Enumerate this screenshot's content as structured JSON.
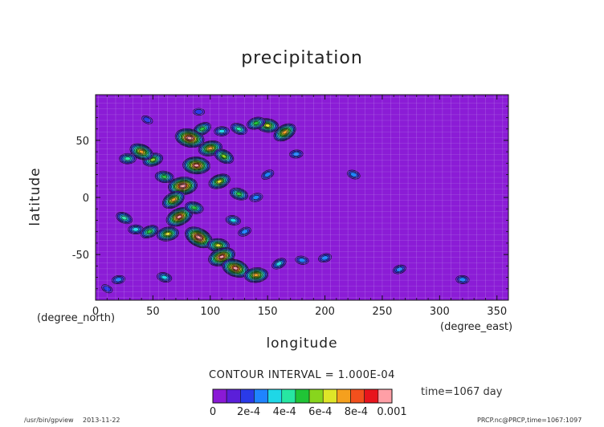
{
  "chart_data": {
    "type": "heatmap",
    "title": "precipitation",
    "xlabel": "longitude",
    "xlabel_unit": "(degree_east)",
    "ylabel": "latitude",
    "ylabel_unit": "(degree_north)",
    "xlim": [
      0,
      360
    ],
    "ylim": [
      -90,
      90
    ],
    "xticks": [
      0,
      50,
      100,
      150,
      200,
      250,
      300,
      350
    ],
    "yticks": [
      -50,
      0,
      50
    ],
    "contour_interval_text": "CONTOUR INTERVAL = 1.000E-04",
    "time_text": "time=1067 day",
    "colorbar": {
      "levels": [
        0,
        0.0001,
        0.0002,
        0.0003,
        0.0004,
        0.0005,
        0.0006,
        0.0007,
        0.0008,
        0.0009,
        0.001
      ],
      "colors": [
        "#8a19d6",
        "#5b1fd9",
        "#2a3ae8",
        "#1f84ff",
        "#1fd7e6",
        "#27e6a2",
        "#20c436",
        "#88d51d",
        "#dfe528",
        "#f5a01e",
        "#f2501d",
        "#e8141c",
        "#ff9fa6"
      ],
      "labels": [
        "0",
        "2e-4",
        "4e-4",
        "6e-4",
        "8e-4",
        "0.001"
      ]
    },
    "background_color": "#8b1cd6",
    "field_features": [
      {
        "lon": 165,
        "lat": 57,
        "max": 0.0009
      },
      {
        "lon": 150,
        "lat": 63,
        "max": 0.0008
      },
      {
        "lon": 140,
        "lat": 65,
        "max": 0.0006
      },
      {
        "lon": 125,
        "lat": 60,
        "max": 0.0005
      },
      {
        "lon": 110,
        "lat": 58,
        "max": 0.0004
      },
      {
        "lon": 93,
        "lat": 60,
        "max": 0.0006
      },
      {
        "lon": 82,
        "lat": 52,
        "max": 0.0012
      },
      {
        "lon": 100,
        "lat": 43,
        "max": 0.0009
      },
      {
        "lon": 112,
        "lat": 36,
        "max": 0.0007
      },
      {
        "lon": 88,
        "lat": 28,
        "max": 0.0011
      },
      {
        "lon": 108,
        "lat": 14,
        "max": 0.0008
      },
      {
        "lon": 125,
        "lat": 3,
        "max": 0.0006
      },
      {
        "lon": 76,
        "lat": 10,
        "max": 0.0012
      },
      {
        "lon": 68,
        "lat": -2,
        "max": 0.0009
      },
      {
        "lon": 60,
        "lat": 18,
        "max": 0.0006
      },
      {
        "lon": 50,
        "lat": 33,
        "max": 0.0007
      },
      {
        "lon": 40,
        "lat": 40,
        "max": 0.0009
      },
      {
        "lon": 28,
        "lat": 34,
        "max": 0.0005
      },
      {
        "lon": 73,
        "lat": -17,
        "max": 0.0011
      },
      {
        "lon": 86,
        "lat": -9,
        "max": 0.0006
      },
      {
        "lon": 63,
        "lat": -32,
        "max": 0.0008
      },
      {
        "lon": 90,
        "lat": -35,
        "max": 0.0012
      },
      {
        "lon": 107,
        "lat": -42,
        "max": 0.0008
      },
      {
        "lon": 110,
        "lat": -52,
        "max": 0.0011
      },
      {
        "lon": 122,
        "lat": -62,
        "max": 0.0011
      },
      {
        "lon": 140,
        "lat": -68,
        "max": 0.0009
      },
      {
        "lon": 160,
        "lat": -58,
        "max": 0.0004
      },
      {
        "lon": 180,
        "lat": -55,
        "max": 0.0003
      },
      {
        "lon": 200,
        "lat": -53,
        "max": 0.0003
      },
      {
        "lon": 25,
        "lat": -18,
        "max": 0.0005
      },
      {
        "lon": 35,
        "lat": -28,
        "max": 0.0004
      },
      {
        "lon": 47,
        "lat": -30,
        "max": 0.0006
      },
      {
        "lon": 60,
        "lat": -70,
        "max": 0.0004
      },
      {
        "lon": 20,
        "lat": -72,
        "max": 0.0003
      },
      {
        "lon": 10,
        "lat": -80,
        "max": 0.0002
      },
      {
        "lon": 320,
        "lat": -72,
        "max": 0.0003
      },
      {
        "lon": 265,
        "lat": -63,
        "max": 0.0003
      },
      {
        "lon": 225,
        "lat": 20,
        "max": 0.0003
      },
      {
        "lon": 175,
        "lat": 38,
        "max": 0.0003
      },
      {
        "lon": 150,
        "lat": 20,
        "max": 0.0003
      },
      {
        "lon": 120,
        "lat": -20,
        "max": 0.0004
      },
      {
        "lon": 140,
        "lat": 0,
        "max": 0.0003
      },
      {
        "lon": 45,
        "lat": 68,
        "max": 0.0002
      },
      {
        "lon": 90,
        "lat": 75,
        "max": 0.0002
      },
      {
        "lon": 130,
        "lat": -30,
        "max": 0.0003
      }
    ]
  },
  "footer": {
    "left": "/usr/bin/gpview",
    "date": "2013-11-22",
    "right": "PRCP.nc@PRCP,time=1067:1097"
  }
}
